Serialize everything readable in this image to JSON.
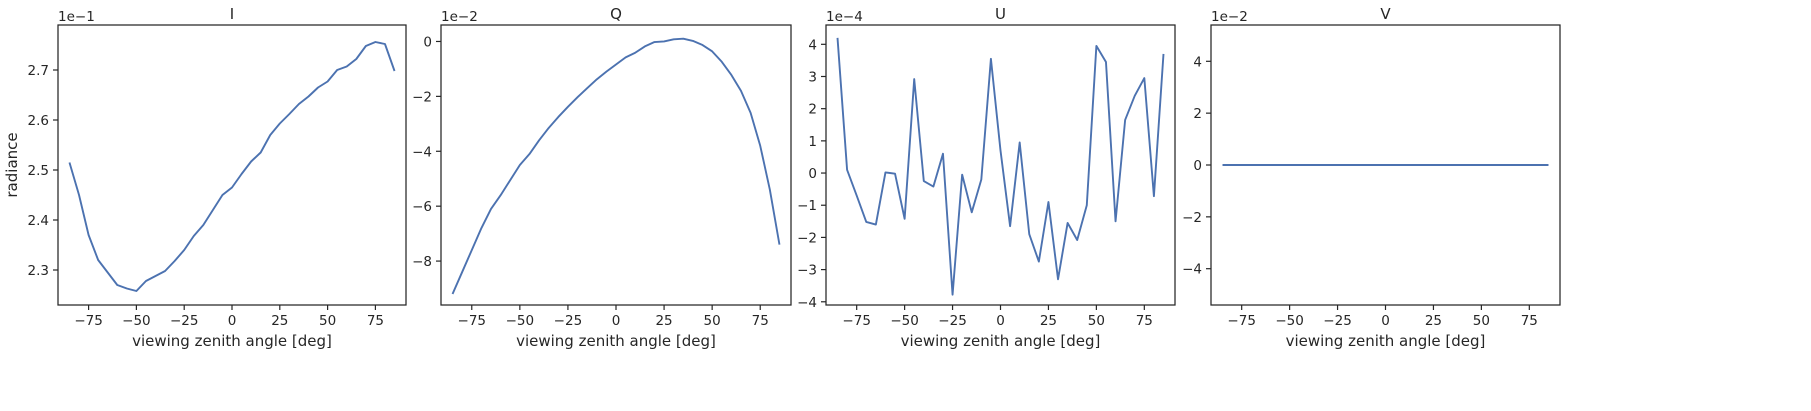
{
  "chart_data": [
    {
      "type": "line",
      "title": "I",
      "xlabel": "viewing zenith angle [deg]",
      "ylabel": "radiance",
      "offset_text": "1e−1",
      "xlim": [
        -91,
        91
      ],
      "ylim": [
        2.23,
        2.79
      ],
      "xticks": [
        -75,
        -50,
        -25,
        0,
        25,
        50,
        75
      ],
      "xtick_labels": [
        "−75",
        "−50",
        "−25",
        "0",
        "25",
        "50",
        "75"
      ],
      "yticks": [
        2.3,
        2.4,
        2.5,
        2.6,
        2.7
      ],
      "ytick_labels": [
        "2.3",
        "2.4",
        "2.5",
        "2.6",
        "2.7"
      ],
      "color": "#4c72b0",
      "x": [
        -85,
        -80,
        -75,
        -70,
        -65,
        -60,
        -55,
        -50,
        -45,
        -40,
        -35,
        -30,
        -25,
        -20,
        -15,
        -10,
        -5,
        0,
        5,
        10,
        15,
        20,
        25,
        30,
        35,
        40,
        45,
        50,
        55,
        60,
        65,
        70,
        75,
        80,
        85
      ],
      "y": [
        2.515,
        2.45,
        2.37,
        2.32,
        2.295,
        2.27,
        2.263,
        2.258,
        2.278,
        2.288,
        2.298,
        2.318,
        2.34,
        2.368,
        2.39,
        2.42,
        2.45,
        2.465,
        2.492,
        2.517,
        2.535,
        2.57,
        2.593,
        2.612,
        2.632,
        2.647,
        2.665,
        2.677,
        2.7,
        2.707,
        2.722,
        2.748,
        2.756,
        2.752,
        2.698
      ]
    },
    {
      "type": "line",
      "title": "Q",
      "xlabel": "viewing zenith angle [deg]",
      "ylabel": "",
      "offset_text": "1e−2",
      "xlim": [
        -91,
        91
      ],
      "ylim": [
        -9.6,
        0.6
      ],
      "xticks": [
        -75,
        -50,
        -25,
        0,
        25,
        50,
        75
      ],
      "xtick_labels": [
        "−75",
        "−50",
        "−25",
        "0",
        "25",
        "50",
        "75"
      ],
      "yticks": [
        -8,
        -6,
        -4,
        -2,
        0
      ],
      "ytick_labels": [
        "−8",
        "−6",
        "−4",
        "−2",
        "0"
      ],
      "color": "#4c72b0",
      "x": [
        -85,
        -80,
        -75,
        -70,
        -65,
        -60,
        -55,
        -50,
        -45,
        -40,
        -35,
        -30,
        -25,
        -20,
        -15,
        -10,
        -5,
        0,
        5,
        10,
        15,
        20,
        25,
        30,
        35,
        40,
        45,
        50,
        55,
        60,
        65,
        70,
        75,
        80,
        85
      ],
      "y": [
        -9.2,
        -8.4,
        -7.6,
        -6.8,
        -6.1,
        -5.6,
        -5.05,
        -4.5,
        -4.1,
        -3.6,
        -3.15,
        -2.75,
        -2.38,
        -2.03,
        -1.7,
        -1.38,
        -1.1,
        -0.84,
        -0.58,
        -0.41,
        -0.18,
        -0.02,
        0.0,
        0.08,
        0.1,
        0.02,
        -0.13,
        -0.36,
        -0.74,
        -1.22,
        -1.8,
        -2.6,
        -3.8,
        -5.4,
        -7.4
      ]
    },
    {
      "type": "line",
      "title": "U",
      "xlabel": "viewing zenith angle [deg]",
      "ylabel": "",
      "offset_text": "1e−4",
      "xlim": [
        -91,
        91
      ],
      "ylim": [
        -4.1,
        4.6
      ],
      "xticks": [
        -75,
        -50,
        -25,
        0,
        25,
        50,
        75
      ],
      "xtick_labels": [
        "−75",
        "−50",
        "−25",
        "0",
        "25",
        "50",
        "75"
      ],
      "yticks": [
        -4,
        -3,
        -2,
        -1,
        0,
        1,
        2,
        3,
        4
      ],
      "ytick_labels": [
        "−4",
        "−3",
        "−2",
        "−1",
        "0",
        "1",
        "2",
        "3",
        "4"
      ],
      "color": "#4c72b0",
      "x": [
        -85,
        -80,
        -75,
        -70,
        -65,
        -60,
        -55,
        -50,
        -45,
        -40,
        -35,
        -30,
        -25,
        -20,
        -15,
        -10,
        -5,
        0,
        5,
        10,
        15,
        20,
        25,
        30,
        35,
        40,
        45,
        50,
        55,
        60,
        65,
        70,
        75,
        80,
        85
      ],
      "y": [
        4.2,
        0.1,
        -0.7,
        -1.52,
        -1.6,
        0.02,
        -0.02,
        -1.42,
        2.92,
        -0.25,
        -0.42,
        0.6,
        -3.78,
        -0.05,
        -1.22,
        -0.2,
        3.55,
        0.7,
        -1.65,
        0.95,
        -1.9,
        -2.75,
        -0.9,
        -3.3,
        -1.55,
        -2.08,
        -1.0,
        3.95,
        3.45,
        -1.5,
        1.65,
        2.4,
        2.95,
        -0.72,
        3.7
      ]
    },
    {
      "type": "line",
      "title": "V",
      "xlabel": "viewing zenith angle [deg]",
      "ylabel": "",
      "offset_text": "1e−2",
      "xlim": [
        -91,
        91
      ],
      "ylim": [
        -5.4,
        5.4
      ],
      "xticks": [
        -75,
        -50,
        -25,
        0,
        25,
        50,
        75
      ],
      "xtick_labels": [
        "−75",
        "−50",
        "−25",
        "0",
        "25",
        "50",
        "75"
      ],
      "yticks": [
        -4,
        -2,
        0,
        2,
        4
      ],
      "ytick_labels": [
        "−4",
        "−2",
        "0",
        "2",
        "4"
      ],
      "color": "#4c72b0",
      "x": [
        -85,
        -80,
        -75,
        -70,
        -65,
        -60,
        -55,
        -50,
        -45,
        -40,
        -35,
        -30,
        -25,
        -20,
        -15,
        -10,
        -5,
        0,
        5,
        10,
        15,
        20,
        25,
        30,
        35,
        40,
        45,
        50,
        55,
        60,
        65,
        70,
        75,
        80,
        85
      ],
      "y": [
        0,
        0,
        0,
        0,
        0,
        0,
        0,
        0,
        0,
        0,
        0,
        0,
        0,
        0,
        0,
        0,
        0,
        0,
        0,
        0,
        0,
        0,
        0,
        0,
        0,
        0,
        0,
        0,
        0,
        0,
        0,
        0,
        0,
        0,
        0
      ]
    }
  ]
}
